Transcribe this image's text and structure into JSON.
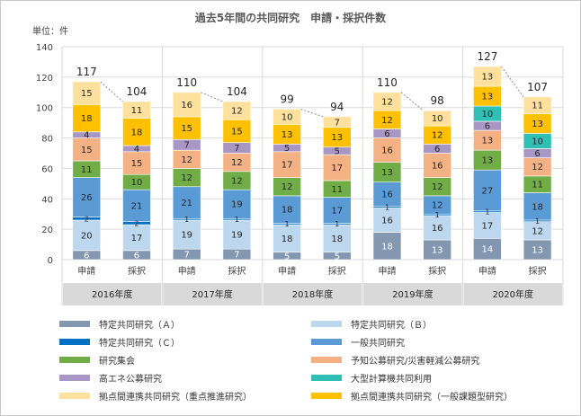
{
  "chart_data": {
    "type": "bar",
    "title": "過去5年間の共同研究　申請・採択件数",
    "unit_label": "単位：件",
    "ylim": [
      0,
      140
    ],
    "yticks": [
      0,
      20,
      40,
      60,
      80,
      100,
      120,
      140
    ],
    "grid": true,
    "stacked": true,
    "groups": [
      "2016年度",
      "2017年度",
      "2018年度",
      "2019年度",
      "2020年度"
    ],
    "categories": [
      "申請",
      "採択",
      "申請",
      "採択",
      "申請",
      "採択",
      "申請",
      "採択",
      "申請",
      "採択"
    ],
    "totals": [
      117,
      104,
      110,
      104,
      99,
      94,
      110,
      98,
      127,
      107
    ],
    "series": [
      {
        "name": "特定共同研究（Ａ）",
        "color": "#8497b0",
        "values": [
          6,
          6,
          7,
          7,
          5,
          5,
          18,
          13,
          14,
          13
        ]
      },
      {
        "name": "特定共同研究（Ｂ）",
        "color": "#bdd7ee",
        "values": [
          20,
          17,
          19,
          19,
          18,
          18,
          16,
          16,
          17,
          12
        ]
      },
      {
        "name": "特定共同研究（Ｃ）",
        "color": "#0070c0",
        "values": [
          2,
          2,
          1,
          1,
          1,
          1,
          1,
          1,
          1,
          1
        ]
      },
      {
        "name": "一般共同研究",
        "color": "#5b9bd5",
        "values": [
          26,
          21,
          21,
          19,
          18,
          17,
          16,
          12,
          27,
          18
        ]
      },
      {
        "name": "研究集会",
        "color": "#70ad47",
        "values": [
          11,
          10,
          12,
          12,
          12,
          11,
          13,
          12,
          13,
          11
        ]
      },
      {
        "name": "予知公募研究/災害軽減公募研究",
        "color": "#f4b183",
        "values": [
          15,
          15,
          12,
          12,
          17,
          17,
          16,
          16,
          13,
          12
        ]
      },
      {
        "name": "高エネ公募研究",
        "color": "#a897c4",
        "values": [
          4,
          4,
          7,
          7,
          5,
          5,
          6,
          6,
          6,
          6
        ]
      },
      {
        "name": "大型計算機共同利用",
        "color": "#2fbfb5",
        "values": [
          0,
          0,
          0,
          0,
          0,
          0,
          0,
          0,
          10,
          10
        ]
      },
      {
        "name": "拠点間連携共同研究（一般課題型研究）",
        "color": "#ffc000",
        "values": [
          18,
          18,
          15,
          15,
          13,
          13,
          12,
          12,
          13,
          13
        ]
      },
      {
        "name": "拠点間連携共同研究（重点推進研究）",
        "color": "#ffe09c",
        "values": [
          15,
          11,
          16,
          12,
          10,
          7,
          12,
          10,
          13,
          11
        ]
      }
    ],
    "legend_order": [
      0,
      1,
      2,
      3,
      4,
      5,
      6,
      7,
      9,
      8
    ],
    "legend_position": "bottom"
  }
}
